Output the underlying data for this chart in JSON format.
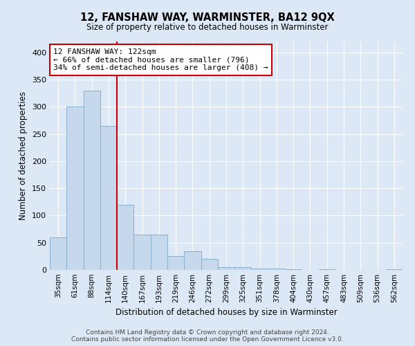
{
  "title": "12, FANSHAW WAY, WARMINSTER, BA12 9QX",
  "subtitle": "Size of property relative to detached houses in Warminster",
  "xlabel": "Distribution of detached houses by size in Warminster",
  "ylabel": "Number of detached properties",
  "footer_line1": "Contains HM Land Registry data © Crown copyright and database right 2024.",
  "footer_line2": "Contains public sector information licensed under the Open Government Licence v3.0.",
  "bins": [
    "35sqm",
    "61sqm",
    "88sqm",
    "114sqm",
    "140sqm",
    "167sqm",
    "193sqm",
    "219sqm",
    "246sqm",
    "272sqm",
    "299sqm",
    "325sqm",
    "351sqm",
    "378sqm",
    "404sqm",
    "430sqm",
    "457sqm",
    "483sqm",
    "509sqm",
    "536sqm",
    "562sqm"
  ],
  "bar_heights": [
    60,
    300,
    330,
    265,
    120,
    65,
    65,
    25,
    35,
    20,
    5,
    5,
    2,
    2,
    1,
    0,
    1,
    0,
    0,
    0,
    1
  ],
  "bar_color": "#c6d9ec",
  "bar_edge_color": "#8ab0cc",
  "vline_x": 3.5,
  "vline_color": "#cc0000",
  "ylim": [
    0,
    420
  ],
  "yticks": [
    0,
    50,
    100,
    150,
    200,
    250,
    300,
    350,
    400
  ],
  "annotation_text": "12 FANSHAW WAY: 122sqm\n← 66% of detached houses are smaller (796)\n34% of semi-detached houses are larger (408) →",
  "annotation_box_color": "#ffffff",
  "annotation_box_edge": "#cc0000",
  "bg_color": "#dce8f5",
  "plot_bg_color": "#dce8f5",
  "fig_bg_color": "#dce8f5"
}
